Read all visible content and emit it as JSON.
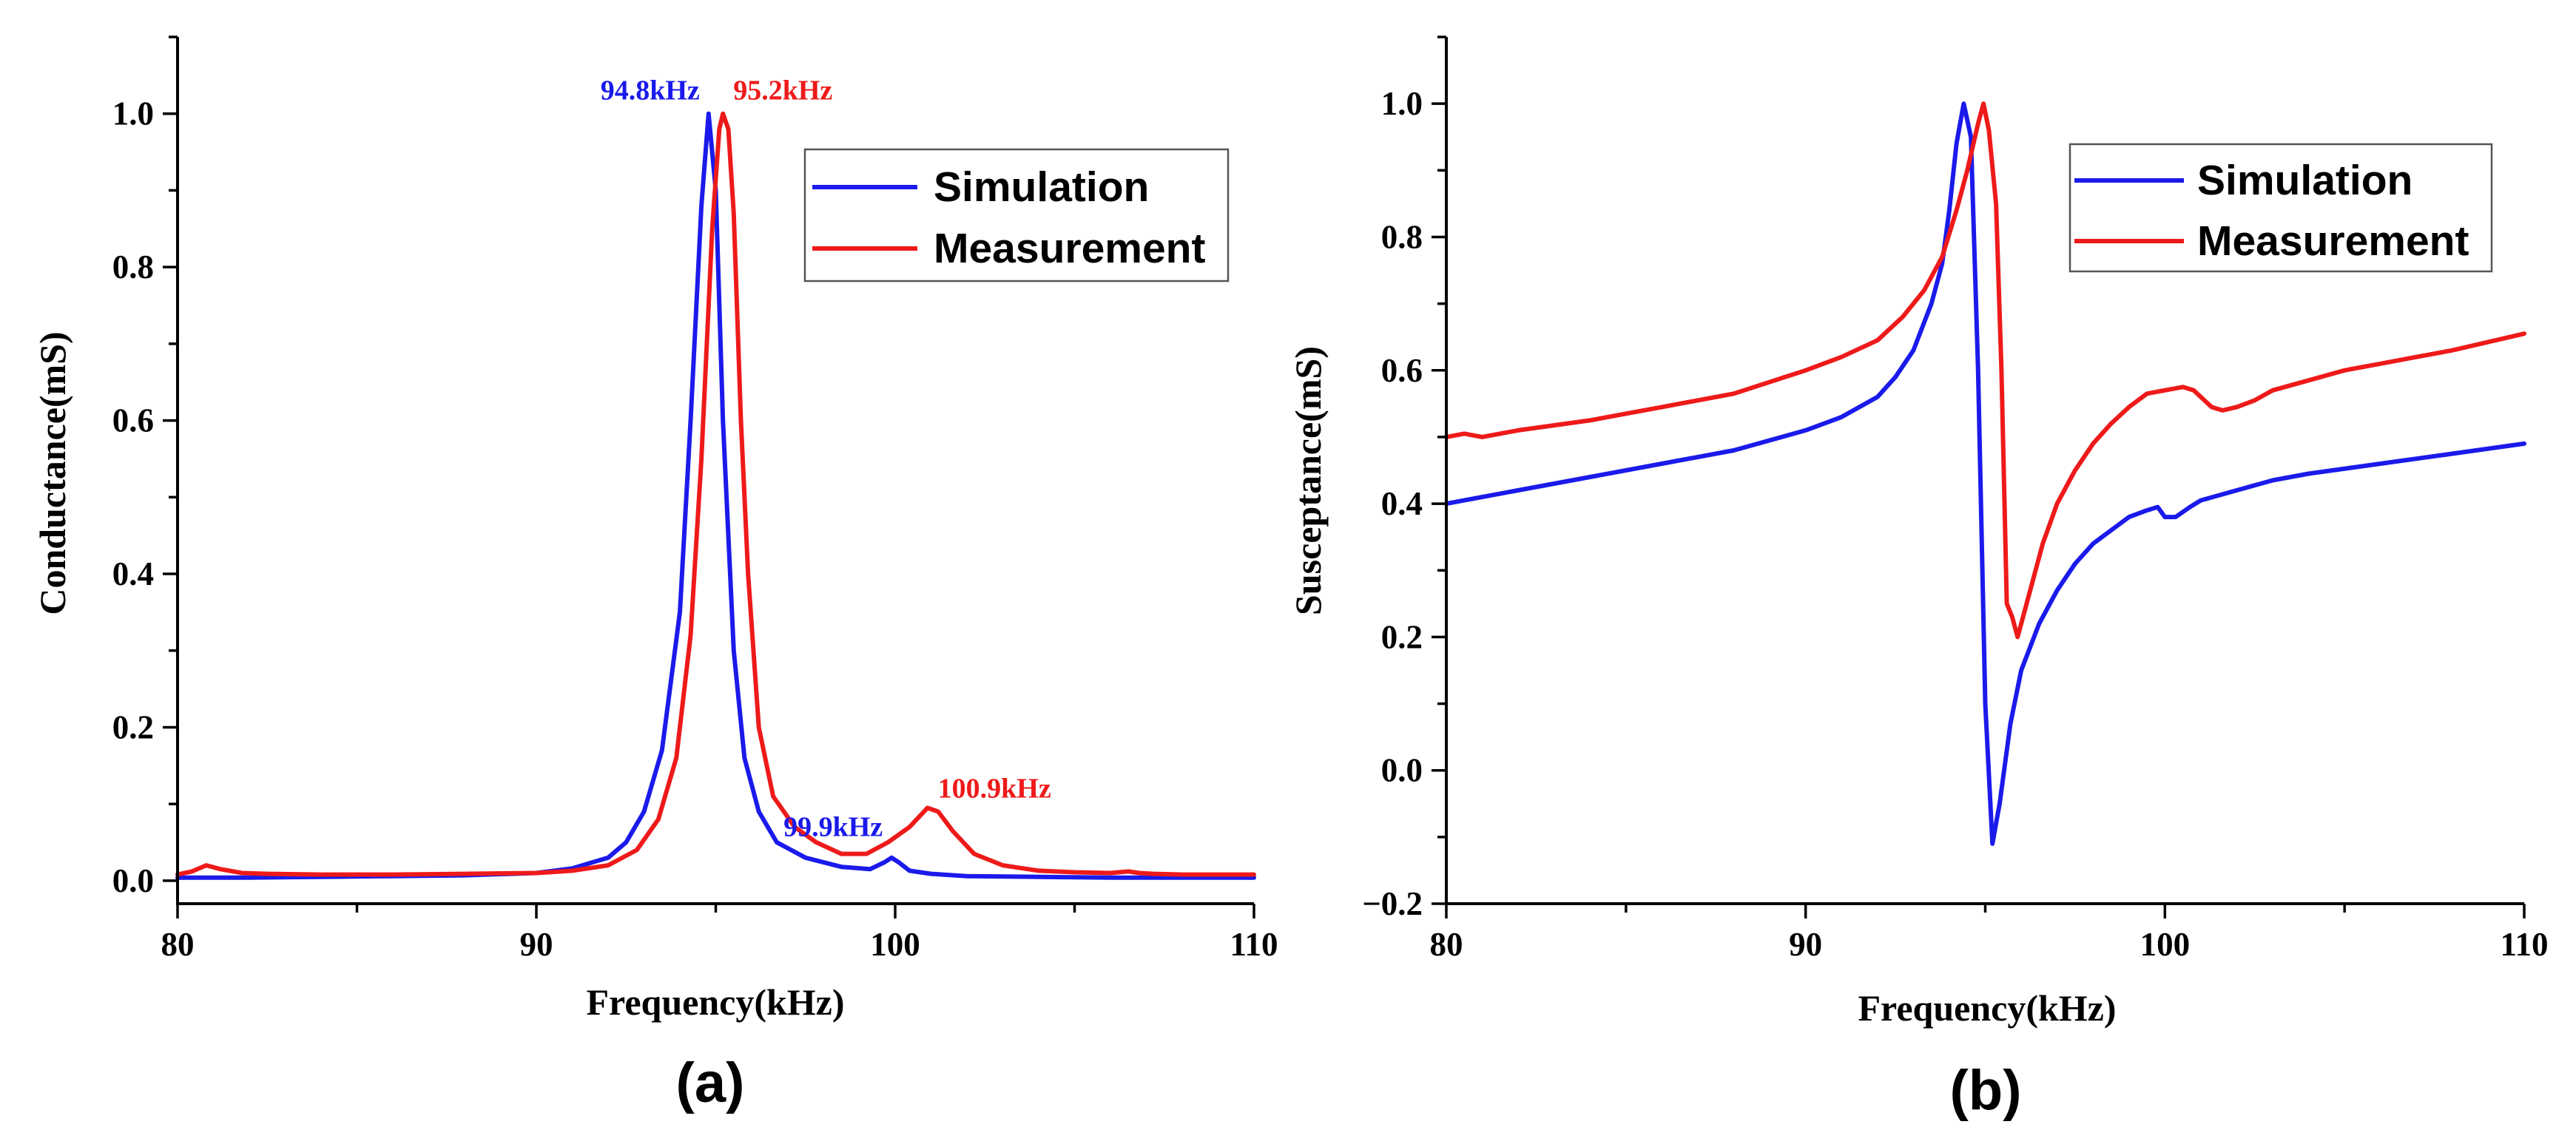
{
  "chart_data": [
    {
      "type": "line",
      "panel_label": "(a)",
      "xlabel": "Frequency(kHz)",
      "ylabel": "Conductance(mS)",
      "xlim": [
        80,
        110
      ],
      "ylim": [
        -0.03,
        1.1
      ],
      "xticks": [
        80,
        90,
        100,
        110
      ],
      "xtick_labels": [
        "80",
        "90",
        "100",
        "110"
      ],
      "yticks": [
        0.0,
        0.2,
        0.4,
        0.6,
        0.8,
        1.0
      ],
      "ytick_labels": [
        "0.0",
        "0.2",
        "0.4",
        "0.6",
        "0.8",
        "1.0"
      ],
      "legend_position": "top-right",
      "series": [
        {
          "name": "Simulation",
          "color": "#1a1aeb",
          "x": [
            80,
            82,
            84,
            86,
            88,
            90,
            91,
            92,
            92.5,
            93,
            93.5,
            94,
            94.3,
            94.6,
            94.8,
            95.0,
            95.2,
            95.5,
            95.8,
            96.2,
            96.7,
            97.5,
            98.5,
            99.3,
            99.7,
            99.9,
            100.1,
            100.4,
            101,
            102,
            104,
            106,
            108,
            110
          ],
          "y": [
            0.004,
            0.004,
            0.005,
            0.006,
            0.007,
            0.01,
            0.016,
            0.03,
            0.05,
            0.09,
            0.17,
            0.35,
            0.6,
            0.88,
            1.0,
            0.9,
            0.6,
            0.3,
            0.16,
            0.09,
            0.05,
            0.03,
            0.018,
            0.015,
            0.024,
            0.03,
            0.024,
            0.013,
            0.009,
            0.006,
            0.005,
            0.004,
            0.004,
            0.004
          ]
        },
        {
          "name": "Measurement",
          "color": "#ee1a1a",
          "x": [
            80,
            80.4,
            80.8,
            81.2,
            81.8,
            82.5,
            84,
            86,
            88,
            90,
            91,
            92,
            92.8,
            93.4,
            93.9,
            94.3,
            94.6,
            94.9,
            95.1,
            95.2,
            95.35,
            95.5,
            95.7,
            95.9,
            96.2,
            96.6,
            97.2,
            97.8,
            98.5,
            99.2,
            99.8,
            100.4,
            100.9,
            101.2,
            101.6,
            102.2,
            103,
            104,
            105,
            106,
            106.5,
            106.8,
            107.2,
            108,
            110
          ],
          "y": [
            0.008,
            0.012,
            0.02,
            0.015,
            0.01,
            0.009,
            0.008,
            0.008,
            0.009,
            0.01,
            0.013,
            0.02,
            0.04,
            0.08,
            0.16,
            0.32,
            0.55,
            0.85,
            0.98,
            1.0,
            0.98,
            0.87,
            0.6,
            0.4,
            0.2,
            0.11,
            0.07,
            0.05,
            0.035,
            0.035,
            0.05,
            0.07,
            0.095,
            0.09,
            0.065,
            0.035,
            0.02,
            0.013,
            0.011,
            0.01,
            0.012,
            0.01,
            0.009,
            0.008,
            0.008
          ]
        }
      ],
      "annotations": [
        {
          "text": "94.8kHz",
          "x": 94.8,
          "y": 1.0,
          "color": "#1a1aeb",
          "anchor": "end",
          "dx": -3,
          "dy": 1.03
        },
        {
          "text": "95.2kHz",
          "x": 95.2,
          "y": 1.0,
          "color": "#ee1a1a",
          "anchor": "start",
          "dx": 0.3,
          "dy": 1.03
        },
        {
          "text": "99.9kHz",
          "x": 99.9,
          "y": 0.03,
          "color": "#1a1aeb",
          "anchor": "end",
          "dx": -0.3,
          "dy": 0.07
        },
        {
          "text": "100.9kHz",
          "x": 100.9,
          "y": 0.095,
          "color": "#ee1a1a",
          "anchor": "start",
          "dx": 0.1,
          "dy": 0.12
        }
      ]
    },
    {
      "type": "line",
      "panel_label": "(b)",
      "xlabel": "Frequency(kHz)",
      "ylabel": "Susceptance(mS)",
      "xlim": [
        80,
        110
      ],
      "ylim": [
        -0.2,
        1.1
      ],
      "xticks": [
        80,
        90,
        100,
        110
      ],
      "xtick_labels": [
        "80",
        "90",
        "100",
        "110"
      ],
      "yticks": [
        -0.2,
        0.0,
        0.2,
        0.4,
        0.6,
        0.8,
        1.0
      ],
      "ytick_labels": [
        "−0.2",
        "0.0",
        "0.2",
        "0.4",
        "0.6",
        "0.8",
        "1.0"
      ],
      "legend_position": "top-right",
      "series": [
        {
          "name": "Simulation",
          "color": "#1a1aeb",
          "x": [
            80,
            82,
            84,
            86,
            88,
            90,
            91,
            92,
            92.5,
            93,
            93.5,
            93.8,
            94.0,
            94.2,
            94.4,
            94.6,
            94.8,
            95.0,
            95.2,
            95.4,
            95.7,
            96.0,
            96.5,
            97,
            97.5,
            98,
            98.5,
            99,
            99.5,
            99.8,
            100.0,
            100.3,
            100.7,
            101,
            102,
            103,
            104,
            106,
            108,
            110
          ],
          "y": [
            0.4,
            0.42,
            0.44,
            0.46,
            0.48,
            0.51,
            0.53,
            0.56,
            0.59,
            0.63,
            0.7,
            0.76,
            0.84,
            0.94,
            1.0,
            0.95,
            0.6,
            0.1,
            -0.11,
            -0.05,
            0.07,
            0.15,
            0.22,
            0.27,
            0.31,
            0.34,
            0.36,
            0.38,
            0.39,
            0.395,
            0.38,
            0.38,
            0.395,
            0.405,
            0.42,
            0.435,
            0.445,
            0.46,
            0.475,
            0.49
          ]
        },
        {
          "name": "Measurement",
          "color": "#ee1a1a",
          "x": [
            80,
            80.5,
            81,
            82,
            84,
            86,
            88,
            90,
            91,
            92,
            92.7,
            93.3,
            93.8,
            94.2,
            94.5,
            94.8,
            94.95,
            95.1,
            95.3,
            95.45,
            95.6,
            95.75,
            95.9,
            96.2,
            96.6,
            97,
            97.5,
            98,
            98.5,
            99,
            99.5,
            100,
            100.5,
            100.8,
            101.0,
            101.3,
            101.6,
            102,
            102.5,
            103,
            104,
            105,
            106,
            107,
            108,
            110
          ],
          "y": [
            0.5,
            0.505,
            0.5,
            0.51,
            0.525,
            0.545,
            0.565,
            0.6,
            0.62,
            0.645,
            0.68,
            0.72,
            0.77,
            0.84,
            0.9,
            0.97,
            1.0,
            0.96,
            0.85,
            0.6,
            0.25,
            0.23,
            0.2,
            0.26,
            0.34,
            0.4,
            0.45,
            0.49,
            0.52,
            0.545,
            0.565,
            0.57,
            0.575,
            0.57,
            0.56,
            0.545,
            0.54,
            0.545,
            0.555,
            0.57,
            0.585,
            0.6,
            0.61,
            0.62,
            0.63,
            0.655
          ]
        }
      ],
      "annotations": []
    }
  ]
}
